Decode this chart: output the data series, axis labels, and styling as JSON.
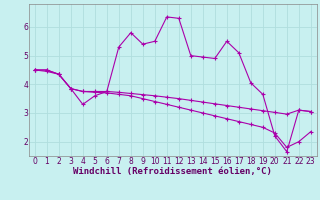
{
  "background_color": "#c8f0f0",
  "grid_color": "#b0dede",
  "line_color": "#aa00aa",
  "marker_color": "#aa00aa",
  "marker_style": "+",
  "marker_size": 3,
  "marker_linewidth": 0.8,
  "line_width": 0.8,
  "xlabel": "Windchill (Refroidissement éolien,°C)",
  "xlabel_fontsize": 6.5,
  "tick_fontsize": 5.5,
  "xlim": [
    -0.5,
    23.5
  ],
  "ylim": [
    1.5,
    6.8
  ],
  "yticks": [
    2,
    3,
    4,
    5,
    6
  ],
  "xtick_labels": [
    "0",
    "1",
    "2",
    "3",
    "4",
    "5",
    "6",
    "7",
    "8",
    "9",
    "10",
    "11",
    "12",
    "13",
    "14",
    "15",
    "16",
    "17",
    "18",
    "19",
    "20",
    "21",
    "22",
    "23"
  ],
  "series": [
    [
      4.5,
      4.5,
      4.35,
      3.85,
      3.3,
      3.6,
      3.75,
      5.3,
      5.8,
      5.4,
      5.5,
      6.35,
      6.3,
      5.0,
      4.95,
      4.9,
      5.5,
      5.1,
      4.05,
      3.65,
      2.2,
      1.65,
      3.1,
      3.05
    ],
    [
      4.5,
      4.5,
      4.35,
      3.85,
      3.75,
      3.75,
      3.75,
      3.72,
      3.68,
      3.64,
      3.6,
      3.55,
      3.5,
      3.44,
      3.38,
      3.32,
      3.26,
      3.2,
      3.14,
      3.08,
      3.02,
      2.96,
      3.1,
      3.05
    ],
    [
      4.5,
      4.45,
      4.35,
      3.85,
      3.75,
      3.72,
      3.7,
      3.65,
      3.6,
      3.5,
      3.4,
      3.3,
      3.2,
      3.1,
      3.0,
      2.9,
      2.8,
      2.7,
      2.6,
      2.5,
      2.3,
      1.8,
      2.0,
      2.35
    ]
  ]
}
